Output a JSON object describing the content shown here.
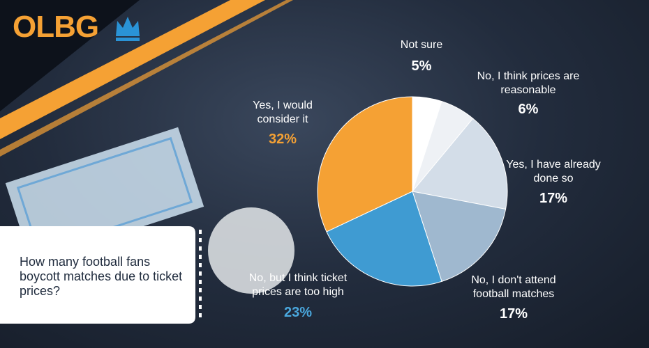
{
  "logo": "OLBG",
  "chart_data": {
    "type": "pie",
    "title": "How many football fans boycott matches due to ticket prices?",
    "categories": [
      "Not sure",
      "No, I think prices are reasonable",
      "Yes, I have already done so",
      "No, I don't attend football matches",
      "No, but I think ticket prices are too high",
      "Yes, I would consider it"
    ],
    "values": [
      5,
      6,
      17,
      17,
      23,
      32
    ],
    "value_labels": [
      "5%",
      "6%",
      "17%",
      "17%",
      "23%",
      "32%"
    ],
    "colors": [
      "#ffffff",
      "#eef1f5",
      "#d3dde8",
      "#9fb8cf",
      "#3f9bd2",
      "#f5a134"
    ],
    "value_label_colors": [
      "#ffffff",
      "#ffffff",
      "#ffffff",
      "#ffffff",
      "#4aa8de",
      "#f5a134"
    ]
  }
}
